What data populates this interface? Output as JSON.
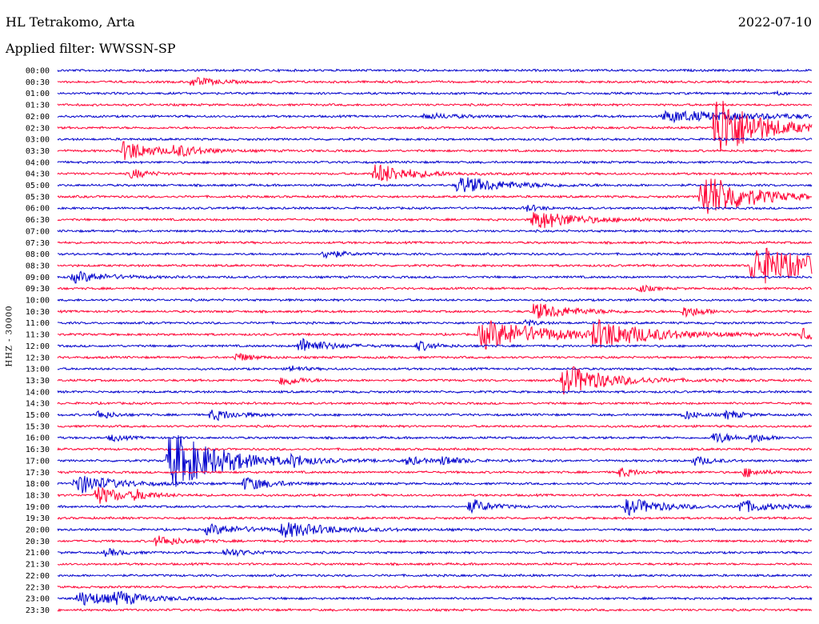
{
  "header": {
    "station": "HL Tetrakomo, Arta",
    "date": "2022-07-10",
    "filter": "Applied filter: WWSSN-SP"
  },
  "colors": {
    "even": "#0000cc",
    "odd": "#ff0033"
  },
  "chart_data": {
    "type": "line",
    "title": "HL Tetrakomo, Arta",
    "ylabel": "HHZ - 30000",
    "row_labels": [
      "00:00",
      "00:30",
      "01:00",
      "01:30",
      "02:00",
      "02:30",
      "03:00",
      "03:30",
      "04:00",
      "04:30",
      "05:00",
      "05:30",
      "06:00",
      "06:30",
      "07:00",
      "07:30",
      "08:00",
      "08:30",
      "09:00",
      "09:30",
      "10:00",
      "10:30",
      "11:00",
      "11:30",
      "12:00",
      "12:30",
      "13:00",
      "13:30",
      "14:00",
      "14:30",
      "15:00",
      "15:30",
      "16:00",
      "16:30",
      "17:00",
      "17:30",
      "18:00",
      "18:30",
      "19:00",
      "19:30",
      "20:00",
      "20:30",
      "21:00",
      "21:30",
      "22:00",
      "22:30",
      "23:00",
      "23:30"
    ],
    "minutes_per_line": 30,
    "events": [
      {
        "row": 1,
        "minute": 5.2,
        "amp": 7,
        "dur": 0.9
      },
      {
        "row": 2,
        "minute": 28.5,
        "amp": 3,
        "dur": 0.3
      },
      {
        "row": 4,
        "minute": 14.5,
        "amp": 4,
        "dur": 1.2
      },
      {
        "row": 4,
        "minute": 24,
        "amp": 7,
        "dur": 4
      },
      {
        "row": 5,
        "minute": 26,
        "amp": 50,
        "dur": 1.5
      },
      {
        "row": 7,
        "minute": 2.5,
        "amp": 16,
        "dur": 1.0
      },
      {
        "row": 7,
        "minute": 4.5,
        "amp": 8,
        "dur": 1.0
      },
      {
        "row": 9,
        "minute": 12.5,
        "amp": 15,
        "dur": 1.3
      },
      {
        "row": 9,
        "minute": 2.8,
        "amp": 8,
        "dur": 0.6
      },
      {
        "row": 10,
        "minute": 15.8,
        "amp": 12,
        "dur": 1.7
      },
      {
        "row": 11,
        "minute": 25.5,
        "amp": 35,
        "dur": 1.6
      },
      {
        "row": 12,
        "minute": 18.5,
        "amp": 6,
        "dur": 0.5
      },
      {
        "row": 13,
        "minute": 18.8,
        "amp": 14,
        "dur": 1.6
      },
      {
        "row": 16,
        "minute": 10.5,
        "amp": 8,
        "dur": 0.6
      },
      {
        "row": 17,
        "minute": 27.5,
        "amp": 28,
        "dur": 2.5
      },
      {
        "row": 18,
        "minute": 0.5,
        "amp": 8,
        "dur": 1.2
      },
      {
        "row": 19,
        "minute": 23,
        "amp": 8,
        "dur": 0.4
      },
      {
        "row": 21,
        "minute": 18.8,
        "amp": 12,
        "dur": 1.4
      },
      {
        "row": 21,
        "minute": 24.8,
        "amp": 9,
        "dur": 0.7
      },
      {
        "row": 22,
        "minute": 18.5,
        "amp": 6,
        "dur": 0.4
      },
      {
        "row": 23,
        "minute": 16.7,
        "amp": 20,
        "dur": 2.5
      },
      {
        "row": 23,
        "minute": 21.2,
        "amp": 18,
        "dur": 2.0
      },
      {
        "row": 23,
        "minute": 29.5,
        "amp": 10,
        "dur": 0.5
      },
      {
        "row": 24,
        "minute": 9.5,
        "amp": 12,
        "dur": 1.0
      },
      {
        "row": 24,
        "minute": 14.2,
        "amp": 8,
        "dur": 0.6
      },
      {
        "row": 25,
        "minute": 7,
        "amp": 8,
        "dur": 0.5
      },
      {
        "row": 26,
        "minute": 9.2,
        "amp": 6,
        "dur": 0.4
      },
      {
        "row": 27,
        "minute": 20,
        "amp": 22,
        "dur": 1.6
      },
      {
        "row": 27,
        "minute": 8.8,
        "amp": 10,
        "dur": 0.6
      },
      {
        "row": 30,
        "minute": 1.5,
        "amp": 8,
        "dur": 0.5
      },
      {
        "row": 30,
        "minute": 6,
        "amp": 8,
        "dur": 1.0
      },
      {
        "row": 30,
        "minute": 24.8,
        "amp": 8,
        "dur": 0.5
      },
      {
        "row": 30,
        "minute": 26.5,
        "amp": 8,
        "dur": 0.5
      },
      {
        "row": 32,
        "minute": 2,
        "amp": 6,
        "dur": 0.5
      },
      {
        "row": 32,
        "minute": 26,
        "amp": 10,
        "dur": 0.6
      },
      {
        "row": 32,
        "minute": 27.5,
        "amp": 8,
        "dur": 0.5
      },
      {
        "row": 34,
        "minute": 4.3,
        "amp": 40,
        "dur": 2.0
      },
      {
        "row": 34,
        "minute": 9.2,
        "amp": 8,
        "dur": 0.5
      },
      {
        "row": 34,
        "minute": 13.8,
        "amp": 8,
        "dur": 0.5
      },
      {
        "row": 34,
        "minute": 15.2,
        "amp": 8,
        "dur": 0.6
      },
      {
        "row": 34,
        "minute": 25.2,
        "amp": 8,
        "dur": 0.6
      },
      {
        "row": 35,
        "minute": 22.2,
        "amp": 8,
        "dur": 0.6
      },
      {
        "row": 35,
        "minute": 27.2,
        "amp": 8,
        "dur": 0.6
      },
      {
        "row": 36,
        "minute": 0.6,
        "amp": 15,
        "dur": 1.3
      },
      {
        "row": 36,
        "minute": 7.3,
        "amp": 10,
        "dur": 1.0
      },
      {
        "row": 37,
        "minute": 1.4,
        "amp": 14,
        "dur": 1.0
      },
      {
        "row": 37,
        "minute": 3,
        "amp": 7,
        "dur": 0.5
      },
      {
        "row": 38,
        "minute": 16.3,
        "amp": 12,
        "dur": 0.7
      },
      {
        "row": 38,
        "minute": 22.5,
        "amp": 12,
        "dur": 1.3
      },
      {
        "row": 38,
        "minute": 27,
        "amp": 10,
        "dur": 1.0
      },
      {
        "row": 40,
        "minute": 5.8,
        "amp": 7,
        "dur": 1.5
      },
      {
        "row": 40,
        "minute": 8.8,
        "amp": 10,
        "dur": 1.8
      },
      {
        "row": 41,
        "minute": 3.8,
        "amp": 8,
        "dur": 0.9
      },
      {
        "row": 42,
        "minute": 1.8,
        "amp": 6,
        "dur": 0.6
      },
      {
        "row": 42,
        "minute": 6.5,
        "amp": 6,
        "dur": 0.9
      },
      {
        "row": 46,
        "minute": 0.7,
        "amp": 10,
        "dur": 1.5
      },
      {
        "row": 46,
        "minute": 2.2,
        "amp": 8,
        "dur": 0.9
      }
    ]
  }
}
